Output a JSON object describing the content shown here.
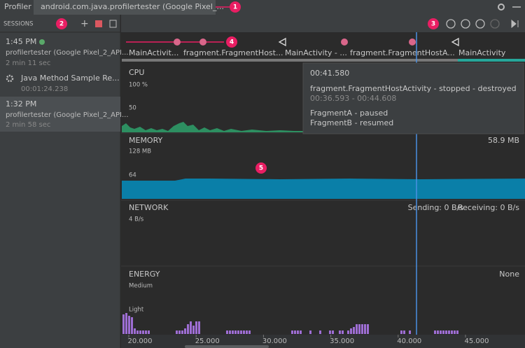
{
  "tabs": [
    "Profiler",
    "android.com.java.profilertester (Google Pixel_..."
  ],
  "callouts": [
    "1",
    "2",
    "3",
    "4",
    "5"
  ],
  "sessions": {
    "title": "SESSIONS",
    "items": [
      {
        "time": "1:45 PM",
        "device": "profilertester (Google Pixel_2_API...",
        "duration": "2 min 11 sec"
      },
      {
        "name": "Java Method Sample Re...",
        "duration": "00:01:24.238"
      },
      {
        "time": "1:32 PM",
        "device": "profilertester (Google Pixel_2_API...",
        "duration": "2 min 58 sec"
      }
    ]
  },
  "events": [
    "MainActivit...",
    "fragment.FragmentHost...",
    "MainActivity - ...",
    "fragment.FragmentHostA...",
    "MainActivity"
  ],
  "monitors": {
    "cpu": {
      "title": "CPU",
      "labels": [
        "100 %",
        "50"
      ]
    },
    "memory": {
      "title": "MEMORY",
      "labels": [
        "128 MB",
        "64"
      ],
      "value": "58.9 MB"
    },
    "network": {
      "title": "NETWORK",
      "labels": [
        "4 B/s"
      ],
      "sending": "Sending: 0 B/s",
      "receiving": "Receiving: 0 B/s"
    },
    "energy": {
      "title": "ENERGY",
      "labels": [
        "Medium",
        "Light"
      ],
      "value": "None"
    }
  },
  "tooltip": {
    "time": "00:41.580",
    "event": "fragment.FragmentHostActivity - stopped - destroyed",
    "range": "00:36.593 - 00:44.608",
    "lines": [
      "FragmentA - paused",
      "FragmentB - resumed"
    ]
  },
  "time_axis": [
    "20.000",
    "25.000",
    "30.000",
    "35.000",
    "40.000",
    "45.000"
  ]
}
